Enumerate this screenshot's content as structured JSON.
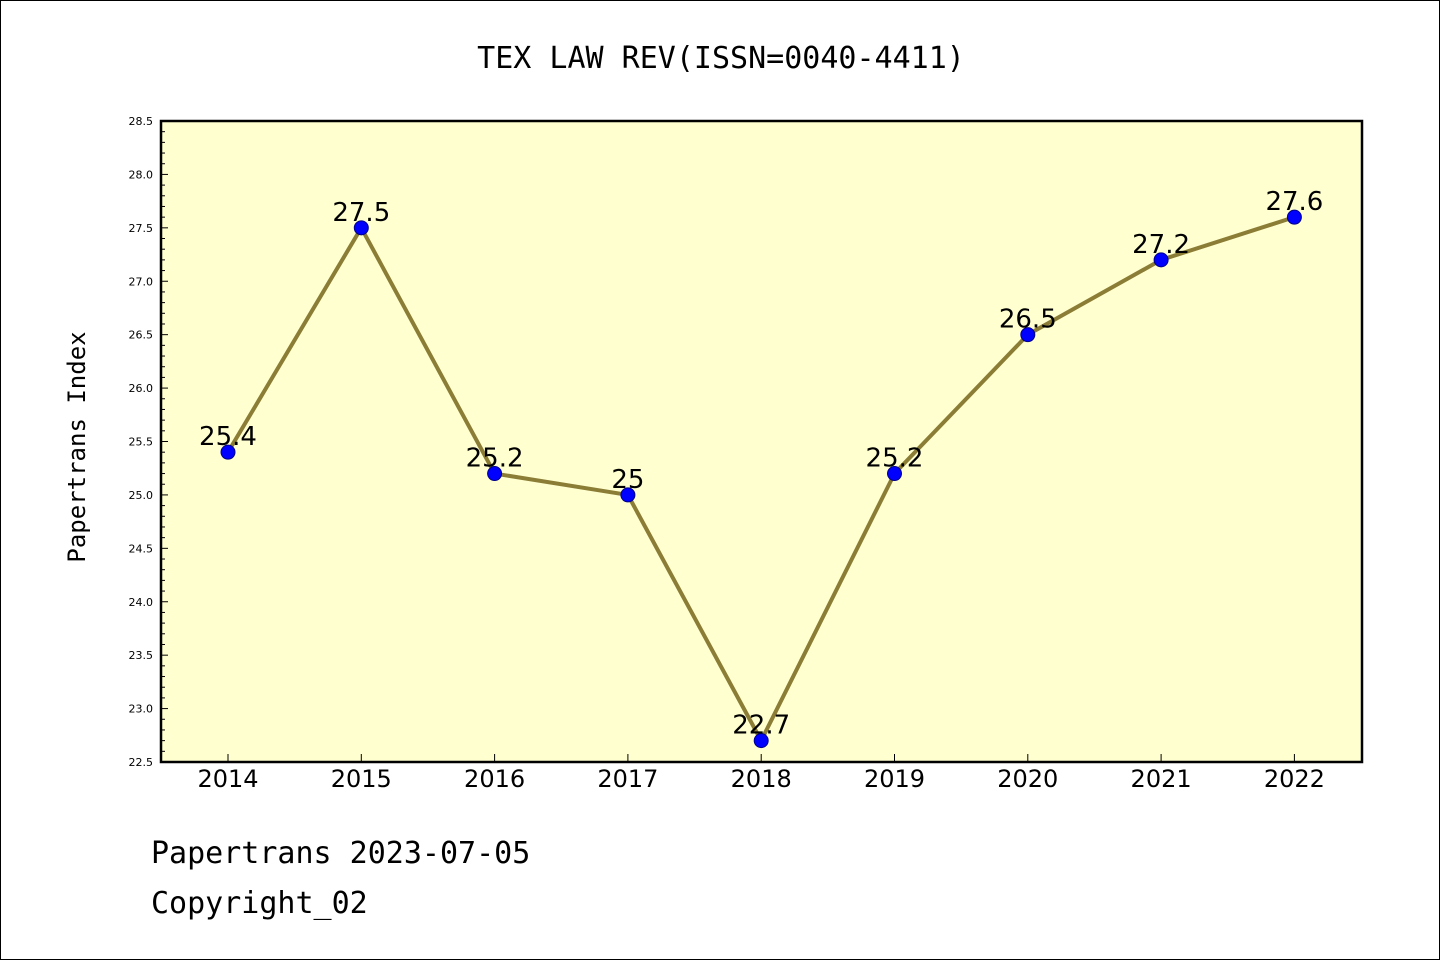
{
  "chart_data": {
    "type": "line",
    "title": "TEX LAW REV(ISSN=0040-4411)",
    "xlabel": "",
    "ylabel": "Papertrans Index",
    "categories": [
      "2014",
      "2015",
      "2016",
      "2017",
      "2018",
      "2019",
      "2020",
      "2021",
      "2022"
    ],
    "series": [
      {
        "values": [
          25.4,
          27.5,
          25.2,
          25.0,
          22.7,
          25.2,
          26.5,
          27.2,
          27.6
        ],
        "data_labels": [
          "25.4",
          "27.5",
          "25.2",
          "25",
          "22.7",
          "25.2",
          "26.5",
          "27.2",
          "27.6"
        ]
      }
    ],
    "ylim": [
      22.5,
      28.5
    ],
    "yticks": [
      "22.5",
      "23.0",
      "23.5",
      "24.0",
      "24.5",
      "25.0",
      "25.5",
      "26.0",
      "26.5",
      "27.0",
      "27.5",
      "28.0",
      "28.5"
    ],
    "grid": false,
    "legend": "none",
    "colors": {
      "plot_background": "#ffffd0",
      "line": "#8b7d35",
      "marker_fill": "#0000ff",
      "marker_edge": "#00008b"
    }
  },
  "footer": {
    "line1": "Papertrans 2023-07-05",
    "line2": "Copyright_02"
  }
}
